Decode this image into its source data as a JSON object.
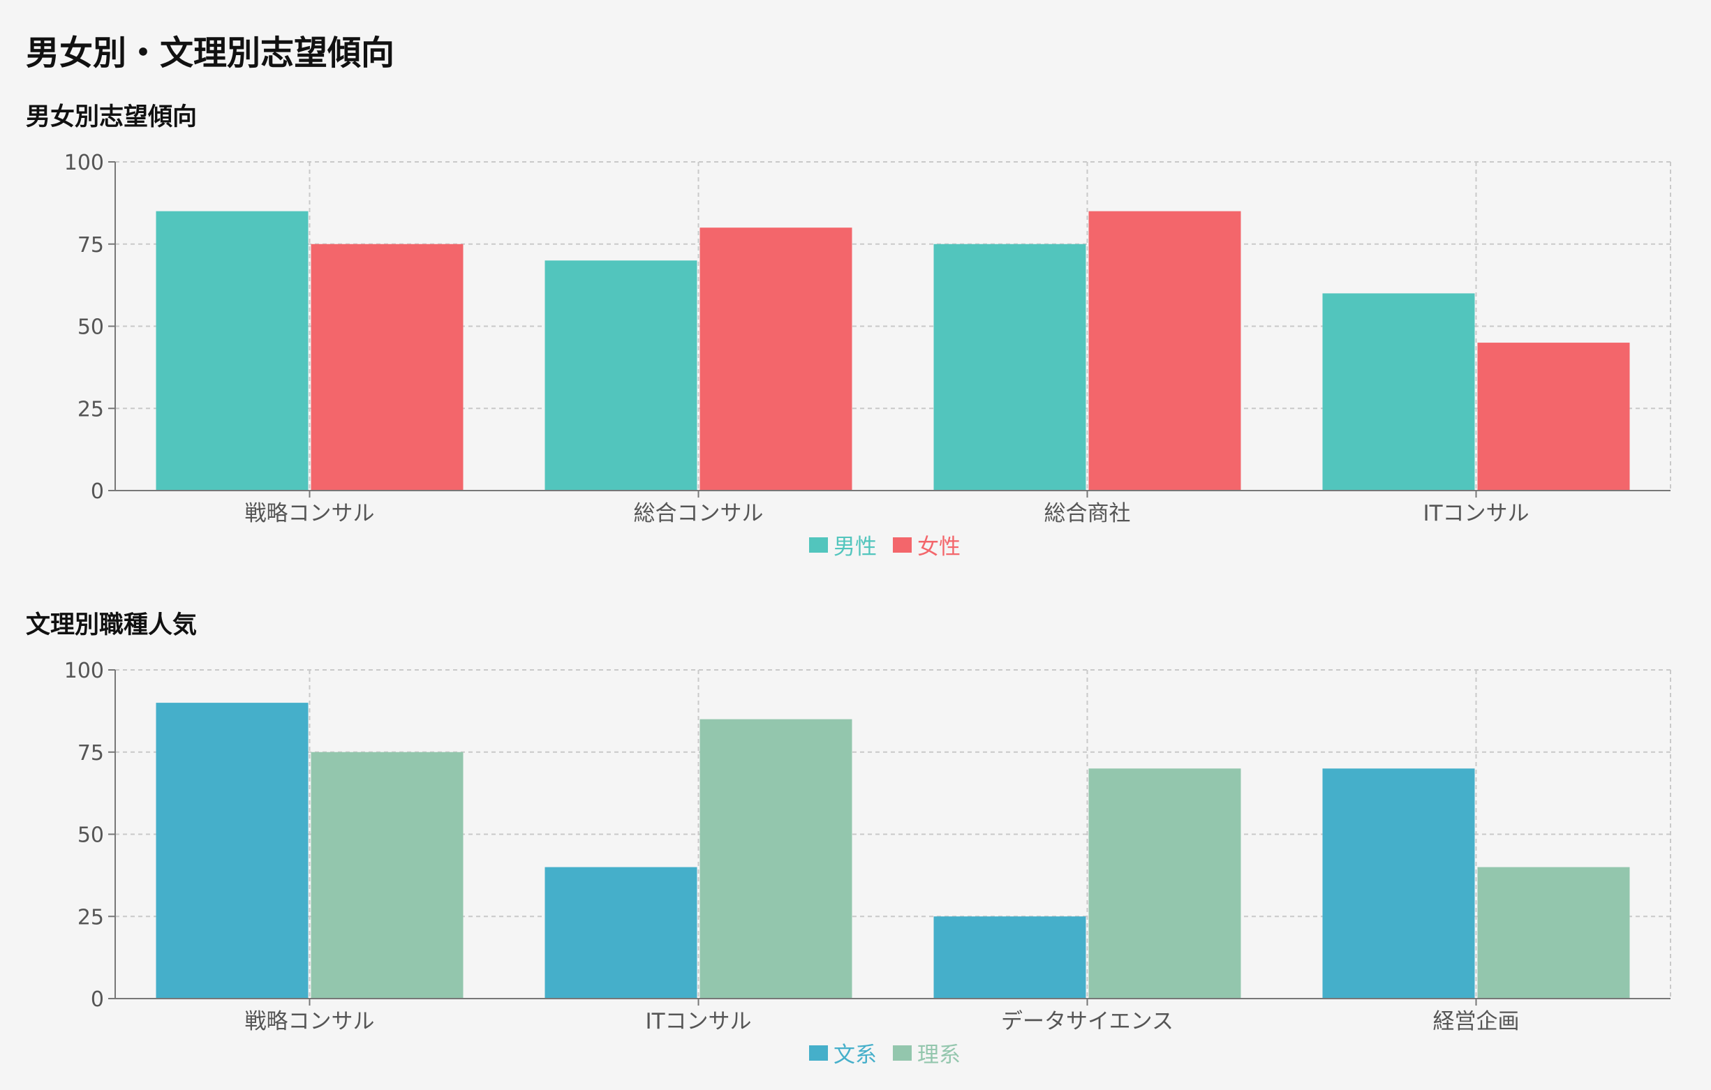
{
  "page": {
    "title": "男女別・文理別志望傾向"
  },
  "sections": [
    {
      "title": "男女別志望傾向"
    },
    {
      "title": "文理別職種人気"
    }
  ],
  "chart_data": [
    {
      "type": "bar",
      "title": "男女別志望傾向",
      "categories": [
        "戦略コンサル",
        "総合コンサル",
        "総合商社",
        "ITコンサル"
      ],
      "series": [
        {
          "name": "男性",
          "values": [
            85,
            70,
            75,
            60
          ],
          "color": "#52c5bd"
        },
        {
          "name": "女性",
          "values": [
            75,
            80,
            85,
            45
          ],
          "color": "#f3666b"
        }
      ],
      "y_ticks": [
        0,
        25,
        50,
        75,
        100
      ],
      "ylim": [
        0,
        100
      ],
      "grid": true,
      "legend_position": "bottom-center"
    },
    {
      "type": "bar",
      "title": "文理別職種人気",
      "categories": [
        "戦略コンサル",
        "ITコンサル",
        "データサイエンス",
        "経営企画"
      ],
      "series": [
        {
          "name": "文系",
          "values": [
            90,
            40,
            25,
            70
          ],
          "color": "#45afca"
        },
        {
          "name": "理系",
          "values": [
            75,
            85,
            70,
            40
          ],
          "color": "#93c6ad"
        }
      ],
      "y_ticks": [
        0,
        25,
        50,
        75,
        100
      ],
      "ylim": [
        0,
        100
      ],
      "grid": true,
      "legend_position": "bottom-center"
    }
  ],
  "colors": {
    "background": "#f5f5f5",
    "grid": "#c9c9c9",
    "axis": "#777777",
    "tick_text": "#555555"
  }
}
